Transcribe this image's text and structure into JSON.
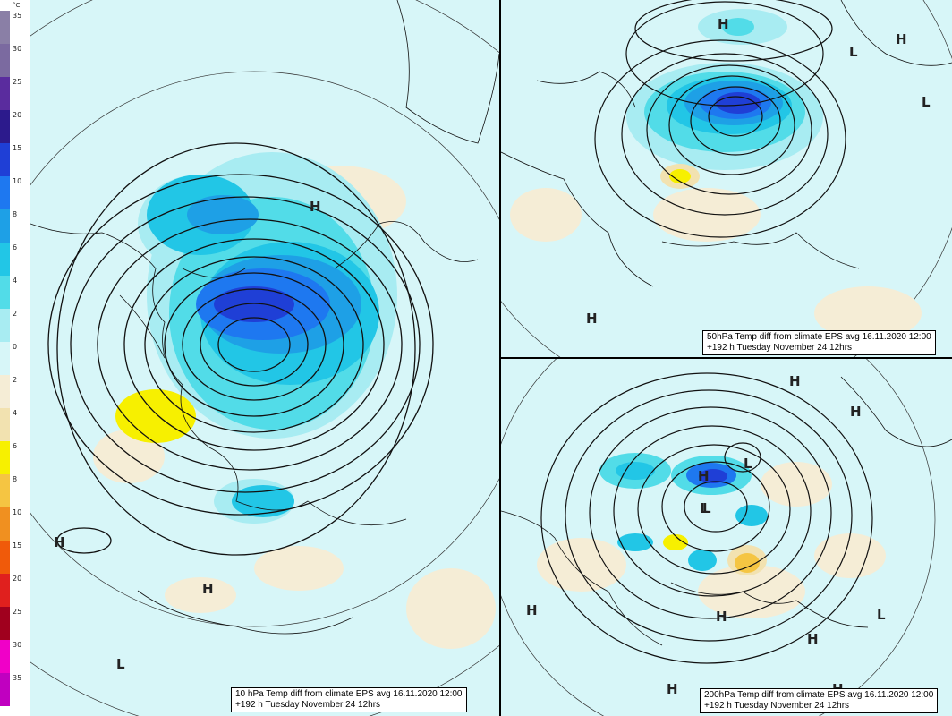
{
  "legend": {
    "unit": "°C",
    "bins": [
      {
        "label": "35",
        "color": "#8a7fa6"
      },
      {
        "label": "30",
        "color": "#7b6aa0"
      },
      {
        "label": "25",
        "color": "#5a2c9e"
      },
      {
        "label": "20",
        "color": "#2c1a8c"
      },
      {
        "label": "15",
        "color": "#1f3fd6"
      },
      {
        "label": "10",
        "color": "#1e78f0"
      },
      {
        "label": "8",
        "color": "#1ea0e6"
      },
      {
        "label": "6",
        "color": "#22c6e6"
      },
      {
        "label": "4",
        "color": "#52dce8"
      },
      {
        "label": "2",
        "color": "#a8ecf2"
      },
      {
        "label": "0",
        "color": "#d7f6f8"
      },
      {
        "label": "2",
        "color": "#f5edd6"
      },
      {
        "label": "4",
        "color": "#f2e2b0"
      },
      {
        "label": "6",
        "color": "#f7f000"
      },
      {
        "label": "8",
        "color": "#f5c542"
      },
      {
        "label": "10",
        "color": "#f09020"
      },
      {
        "label": "15",
        "color": "#f05a0a"
      },
      {
        "label": "20",
        "color": "#e0201e"
      },
      {
        "label": "25",
        "color": "#a0001e"
      },
      {
        "label": "30",
        "color": "#f000c8"
      },
      {
        "label": "35",
        "color": "#c000c0"
      }
    ]
  },
  "panels": {
    "p10": {
      "caption_line1": "10 hPa Temp diff from climate EPS avg 16.11.2020 12:00",
      "caption_line2": "+192 h Tuesday November 24 12hrs",
      "markers": [
        "H",
        "H",
        "H",
        "L"
      ]
    },
    "p50": {
      "caption_line1": "50hPa Temp diff from climate EPS avg 16.11.2020 12:00",
      "caption_line2": "+192 h Tuesday November 24 12hrs",
      "markers": [
        "H",
        "L",
        "H",
        "L",
        "H"
      ]
    },
    "p200": {
      "caption_line1": "200hPa Temp diff from climate EPS avg 16.11.2020 12:00",
      "caption_line2": "+192 h Tuesday November 24 12hrs",
      "markers": [
        "H",
        "H",
        "H",
        "L",
        "L",
        "H",
        "L",
        "H",
        "H",
        "L",
        "H",
        "H"
      ]
    }
  }
}
